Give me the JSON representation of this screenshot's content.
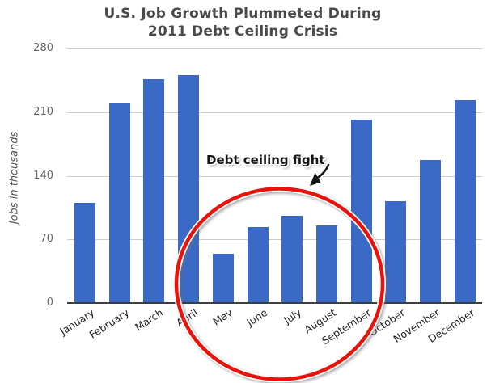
{
  "title": {
    "line1": "U.S. Job Growth Plummeted During",
    "line2": "2011 Debt Ceiling Crisis"
  },
  "chart_data": {
    "type": "bar",
    "title": "U.S. Job Growth Plummeted During 2011 Debt Ceiling Crisis",
    "xlabel": "",
    "ylabel": "Jobs in thousands",
    "categories": [
      "January",
      "February",
      "March",
      "April",
      "May",
      "June",
      "July",
      "August",
      "September",
      "October",
      "November",
      "December"
    ],
    "values": [
      110,
      220,
      246,
      251,
      54,
      84,
      96,
      85,
      202,
      112,
      157,
      223
    ],
    "yticks": [
      0,
      70,
      140,
      210,
      280
    ],
    "ylim": [
      0,
      280
    ],
    "grid": true,
    "legend": false,
    "bar_color": "#3A6AC6",
    "gridline_color": "#cccccc",
    "axis_color": "#3d3d3d",
    "annotation": {
      "text": "Debt ceiling fight",
      "arrow_icon": "down-left-arrow",
      "highlight": "red ellipse circling the May-August bars",
      "highlight_color": "#E8130D"
    }
  }
}
